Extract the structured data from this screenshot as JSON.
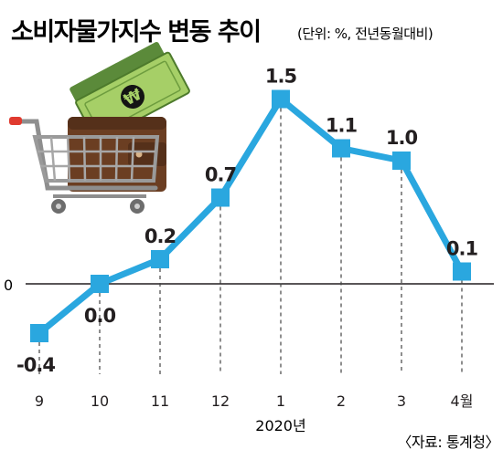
{
  "chart_data": {
    "type": "line",
    "title": "소비자물가지수 변동 추이",
    "unit_note": "(단위: %, 전년동월대비)",
    "categories": [
      "9",
      "10",
      "11",
      "12",
      "1",
      "2",
      "3",
      "4월"
    ],
    "year_label": "2020년",
    "values": [
      -0.4,
      0.0,
      0.2,
      0.7,
      1.5,
      1.1,
      1.0,
      0.1
    ],
    "value_labels": [
      "-0.4",
      "0.0",
      "0.2",
      "0.7",
      "1.5",
      "1.1",
      "1.0",
      "0.1"
    ],
    "zero_label": "0",
    "source": "〈자료: 통계청〉",
    "grid": false,
    "colors": {
      "line": "#2aa7df",
      "text": "#231f20",
      "baseline": "#231f20",
      "guides": "#444444"
    }
  }
}
